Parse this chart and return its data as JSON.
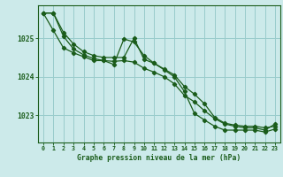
{
  "title": "Graphe pression niveau de la mer (hPa)",
  "background_color": "#cceaea",
  "grid_color": "#99cccc",
  "line_color": "#1a5c1a",
  "xlim": [
    -0.5,
    23.5
  ],
  "ylim": [
    1022.3,
    1025.85
  ],
  "yticks": [
    1023,
    1024,
    1025
  ],
  "xticks": [
    0,
    1,
    2,
    3,
    4,
    5,
    6,
    7,
    8,
    9,
    10,
    11,
    12,
    13,
    14,
    15,
    16,
    17,
    18,
    19,
    20,
    21,
    22,
    23
  ],
  "series1": [
    1025.65,
    1025.65,
    1025.15,
    1024.85,
    1024.65,
    1024.55,
    1024.5,
    1024.5,
    1024.5,
    1025.0,
    1024.45,
    1024.35,
    1024.2,
    1024.05,
    1023.75,
    1023.55,
    1023.3,
    1022.95,
    1022.8,
    1022.75,
    1022.72,
    1022.72,
    1022.68,
    1022.72
  ],
  "series2": [
    1025.65,
    1025.65,
    1025.05,
    1024.72,
    1024.57,
    1024.47,
    1024.42,
    1024.4,
    1024.42,
    1024.38,
    1024.22,
    1024.12,
    1024.0,
    1023.82,
    1023.52,
    1023.35,
    1023.12,
    1022.92,
    1022.78,
    1022.72,
    1022.68,
    1022.68,
    1022.62,
    1022.78
  ],
  "series3": [
    1025.65,
    1025.2,
    1024.75,
    1024.62,
    1024.52,
    1024.42,
    1024.42,
    1024.32,
    1024.98,
    1024.9,
    1024.55,
    1024.35,
    1024.18,
    1024.0,
    1023.62,
    1023.05,
    1022.88,
    1022.72,
    1022.62,
    1022.62,
    1022.62,
    1022.62,
    1022.57,
    1022.65
  ]
}
